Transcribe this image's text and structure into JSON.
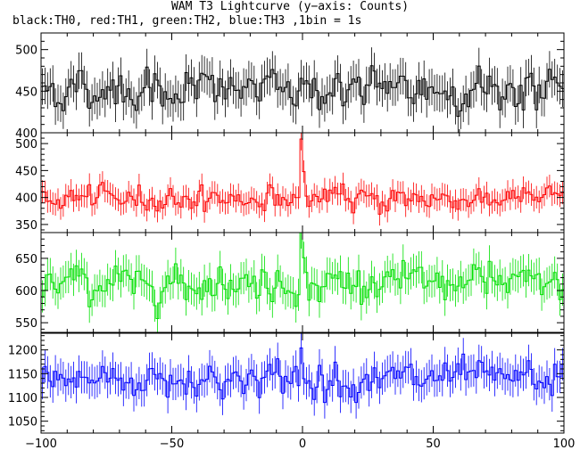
{
  "title": "WAM T3 Lightcurve (y−axis: Counts)",
  "subtitle": "black:TH0, red:TH1, green:TH2, blue:TH3 ,1bin = 1s",
  "chart_data": {
    "type": "line",
    "style": "stacked step lightcurves with error bars",
    "bin_width": 1,
    "x_range": [
      -100,
      100
    ],
    "x_ticks": [
      -100,
      -50,
      0,
      50,
      100
    ],
    "grid": false,
    "panels": [
      {
        "name": "TH0",
        "color": "#000000",
        "ylim": [
          400,
          520
        ],
        "y_ticks": [
          400,
          450,
          500
        ],
        "base": 452,
        "noise": 17,
        "err": 22,
        "spike": 10
      },
      {
        "name": "TH1",
        "color": "#ff0000",
        "ylim": [
          335,
          520
        ],
        "y_ticks": [
          350,
          400,
          450,
          500
        ],
        "base": 398,
        "noise": 15,
        "err": 21,
        "spike": 112
      },
      {
        "name": "TH2",
        "color": "#00e000",
        "ylim": [
          535,
          690
        ],
        "y_ticks": [
          550,
          600,
          650
        ],
        "base": 612,
        "noise": 19,
        "err": 25,
        "spike": 68
      },
      {
        "name": "TH3",
        "color": "#0000ff",
        "ylim": [
          1025,
          1235
        ],
        "y_ticks": [
          1050,
          1100,
          1150,
          1200
        ],
        "base": 1138,
        "noise": 25,
        "err": 34,
        "spike": 65
      }
    ]
  }
}
